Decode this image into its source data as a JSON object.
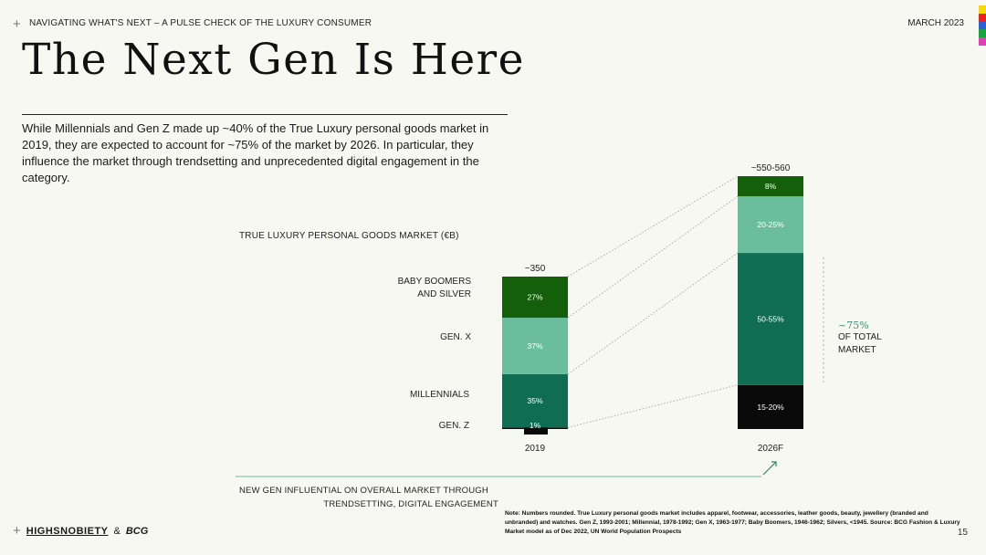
{
  "header": {
    "section": "NAVIGATING WHAT'S NEXT – A PULSE CHECK OF THE LUXURY CONSUMER",
    "date": "MARCH 2023"
  },
  "title": "The Next Gen Is Here",
  "intro": "While Millennials and Gen Z made up ~40% of the True Luxury personal goods market in 2019, they are expected to account for ~75% of the market by 2026. In particular, they influence the market through trendsetting and unprecedented digital engagement in the category.",
  "colors": {
    "boomers": "#14600a",
    "genx": "#6abe9d",
    "millennials": "#0f6d53",
    "genz": "#0a0a0a",
    "accent_bar": [
      "#f7d708",
      "#e8231d",
      "#2a5fd8",
      "#18a33c",
      "#e23fb6"
    ]
  },
  "chart_data": {
    "type": "stacked-bar",
    "title": "TRUE LUXURY PERSONAL GOODS MARKET (€B)",
    "categories": [
      "2019",
      "2026F"
    ],
    "totals": [
      "~350",
      "~550-560"
    ],
    "segment_labels": [
      "BABY BOOMERS AND SILVER",
      "GEN. X",
      "MILLENNIALS",
      "GEN. Z"
    ],
    "series": [
      {
        "name": "GEN. Z",
        "values_2019": 1,
        "values_2026": 17.5,
        "labels": [
          "1%",
          "15-20%"
        ]
      },
      {
        "name": "MILLENNIALS",
        "values_2019": 35,
        "values_2026": 52.5,
        "labels": [
          "35%",
          "50-55%"
        ]
      },
      {
        "name": "GEN. X",
        "values_2019": 37,
        "values_2026": 22.5,
        "labels": [
          "37%",
          "20-25%"
        ]
      },
      {
        "name": "BABY BOOMERS AND SILVER",
        "values_2019": 27,
        "values_2026": 8,
        "labels": [
          "27%",
          "8%"
        ]
      }
    ],
    "callout": {
      "value": "~75%",
      "text": "OF TOTAL MARKET"
    }
  },
  "labels": {
    "boomers": "BABY BOOMERS",
    "boomers2": "AND SILVER",
    "genx": "GEN. X",
    "millennials": "MILLENNIALS",
    "genz": "GEN. Z",
    "callout_line1": "OF TOTAL",
    "callout_line2": "MARKET"
  },
  "footer": {
    "line1": "NEW GEN INFLUENTIAL ON OVERALL MARKET THROUGH",
    "line2": "TRENDSETTING, DIGITAL ENGAGEMENT",
    "note": "Note: Numbers rounded. True Luxury personal goods market includes apparel, footwear, accessories, leather goods, beauty, jewellery (branded and unbranded) and watches. Gen Z, 1993-2001; Millennial, 1978-1992; Gen X, 1963-1977; Baby Boomers, 1946-1962; Silvers, <1945. Source: BCG Fashion & Luxury Market model as of Dec 2022, UN World Population Prospects",
    "brand_hs": "HIGHSNOBIETY",
    "brand_amp": "&",
    "brand_bcg": "BCG",
    "page": "15"
  }
}
